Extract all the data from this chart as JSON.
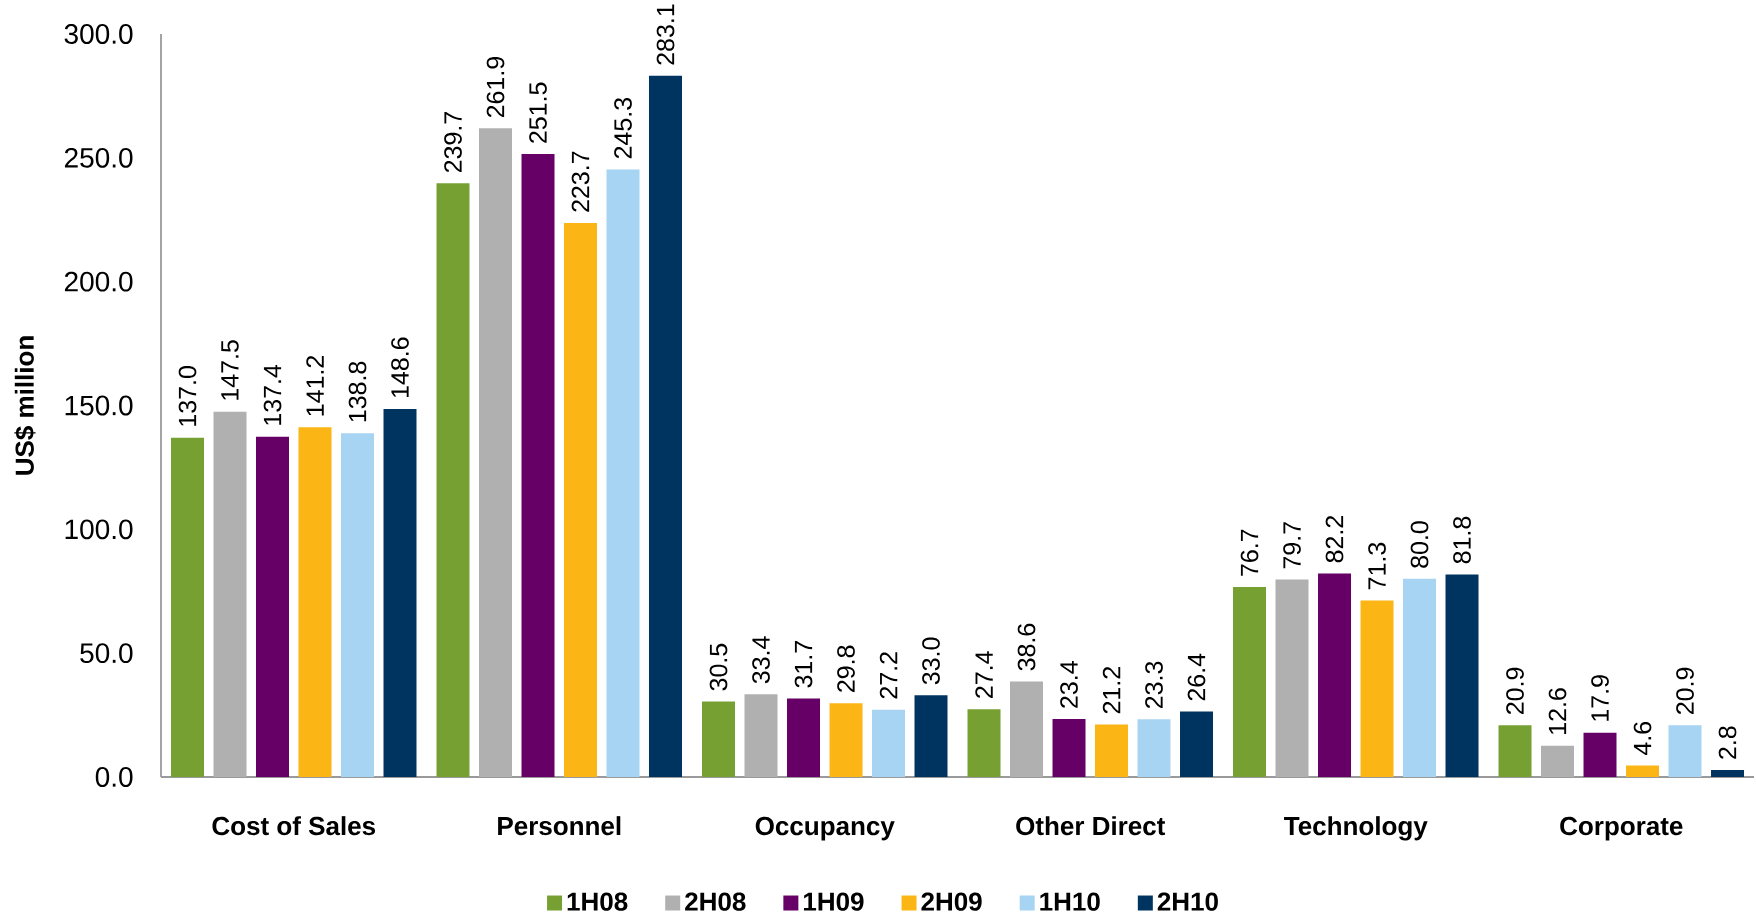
{
  "chart_data": {
    "type": "bar",
    "ylabel": "US$ million",
    "categories": [
      "Cost of Sales",
      "Personnel",
      "Occupancy",
      "Other Direct",
      "Technology",
      "Corporate"
    ],
    "series": [
      {
        "name": "1H08",
        "color": "#77a033",
        "values": [
          137.0,
          239.7,
          30.5,
          27.4,
          76.7,
          20.9
        ],
        "value_labels": [
          "137.0",
          "239.7",
          "30.5",
          "27.4",
          "76.7",
          "20.9"
        ]
      },
      {
        "name": "2H08",
        "color": "#b0b0b0",
        "values": [
          147.5,
          261.9,
          33.4,
          38.6,
          79.7,
          12.6
        ],
        "value_labels": [
          "147.5",
          "261.9",
          "33.4",
          "38.6",
          "79.7",
          "12.6"
        ]
      },
      {
        "name": "1H09",
        "color": "#660066",
        "values": [
          137.4,
          251.5,
          31.7,
          23.4,
          82.2,
          17.9
        ],
        "value_labels": [
          "137.4",
          "251.5",
          "31.7",
          "23.4",
          "82.2",
          "17.9"
        ]
      },
      {
        "name": "2H09",
        "color": "#fbb615",
        "values": [
          141.2,
          223.7,
          29.8,
          21.2,
          71.3,
          4.6
        ],
        "value_labels": [
          "141.2",
          "223.7",
          "29.8",
          "21.2",
          "71.3",
          "4.6"
        ]
      },
      {
        "name": "1H10",
        "color": "#a6d4f2",
        "values": [
          138.8,
          245.3,
          27.2,
          23.3,
          80.0,
          20.9
        ],
        "value_labels": [
          "138.8",
          "245.3",
          "27.2",
          "23.3",
          "80.0",
          "20.9"
        ]
      },
      {
        "name": "2H10",
        "color": "#003460",
        "values": [
          148.6,
          283.1,
          33.0,
          26.4,
          81.8,
          2.8
        ],
        "value_labels": [
          "148.6",
          "283.1",
          "33.0",
          "26.4",
          "81.8",
          "2.8"
        ]
      }
    ],
    "ylim": [
      0,
      300
    ],
    "yticks": [
      {
        "value": 0,
        "label": "0.0"
      },
      {
        "value": 50,
        "label": "50.0"
      },
      {
        "value": 100,
        "label": "100.0"
      },
      {
        "value": 150,
        "label": "150.0"
      },
      {
        "value": 200,
        "label": "200.0"
      },
      {
        "value": 250,
        "label": "250.0"
      },
      {
        "value": 300,
        "label": "300.0"
      }
    ],
    "legend": "bottom"
  }
}
